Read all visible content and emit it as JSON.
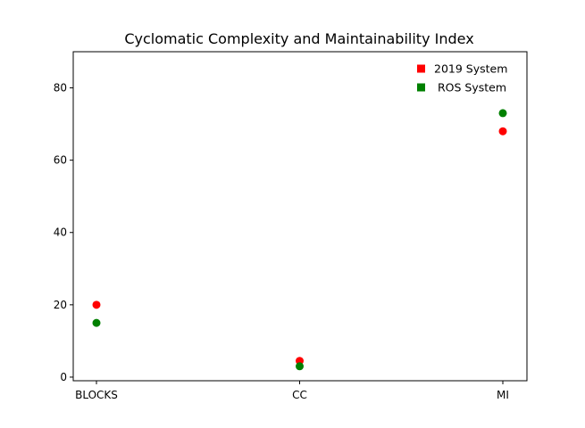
{
  "chart_data": {
    "type": "scatter",
    "title": "Cyclomatic Complexity and Maintainability Index",
    "xlabel": "",
    "ylabel": "",
    "categories": [
      "BLOCKS",
      "CC",
      "MI"
    ],
    "ylim": [
      -1,
      90
    ],
    "yticks": [
      0,
      20,
      40,
      60,
      80
    ],
    "grid": false,
    "legend_position": "top-right",
    "series": [
      {
        "name": "2019 System",
        "color": "#ff0000",
        "values": [
          20,
          4.5,
          68
        ]
      },
      {
        "name": " ROS System",
        "color": "#008000",
        "values": [
          15,
          3,
          73
        ]
      }
    ]
  }
}
